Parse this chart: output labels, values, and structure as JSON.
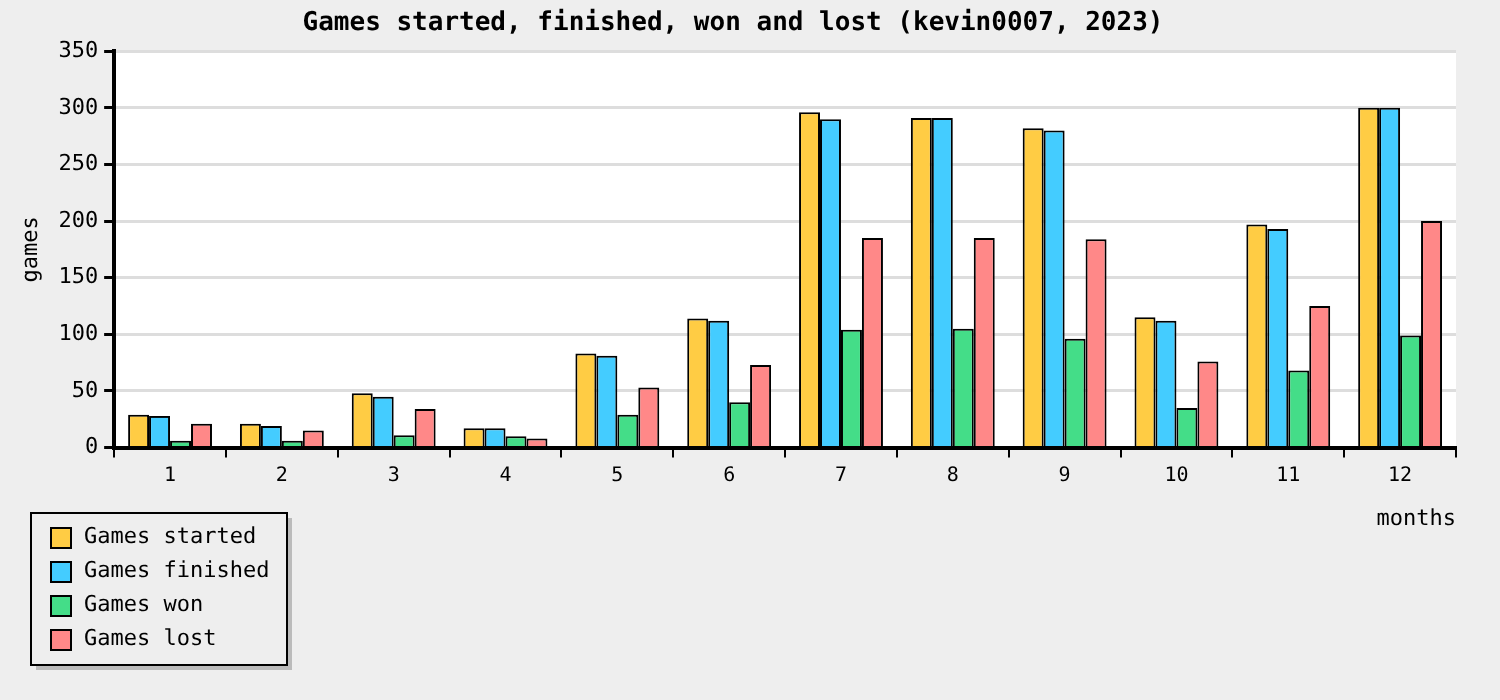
{
  "chart_data": {
    "type": "bar",
    "title": "Games started, finished, won and lost (kevin0007, 2023)",
    "xlabel": "months",
    "ylabel": "games",
    "categories": [
      "1",
      "2",
      "3",
      "4",
      "5",
      "6",
      "7",
      "8",
      "9",
      "10",
      "11",
      "12"
    ],
    "series": [
      {
        "name": "Games started",
        "color": "#ffcc44",
        "values": [
          29,
          21,
          48,
          17,
          83,
          114,
          296,
          291,
          282,
          115,
          197,
          300
        ]
      },
      {
        "name": "Games finished",
        "color": "#44ccff",
        "values": [
          28,
          19,
          45,
          17,
          81,
          112,
          290,
          291,
          280,
          112,
          193,
          300
        ]
      },
      {
        "name": "Games won",
        "color": "#44dd88",
        "values": [
          6,
          6,
          11,
          10,
          29,
          40,
          104,
          105,
          96,
          35,
          68,
          99
        ]
      },
      {
        "name": "Games lost",
        "color": "#ff8888",
        "values": [
          21,
          15,
          34,
          8,
          53,
          73,
          185,
          185,
          184,
          76,
          125,
          200
        ]
      }
    ],
    "ylim": [
      0,
      350
    ],
    "yticks": [
      0,
      50,
      100,
      150,
      200,
      250,
      300,
      350
    ],
    "grid": "y",
    "legend": "bottom left"
  }
}
